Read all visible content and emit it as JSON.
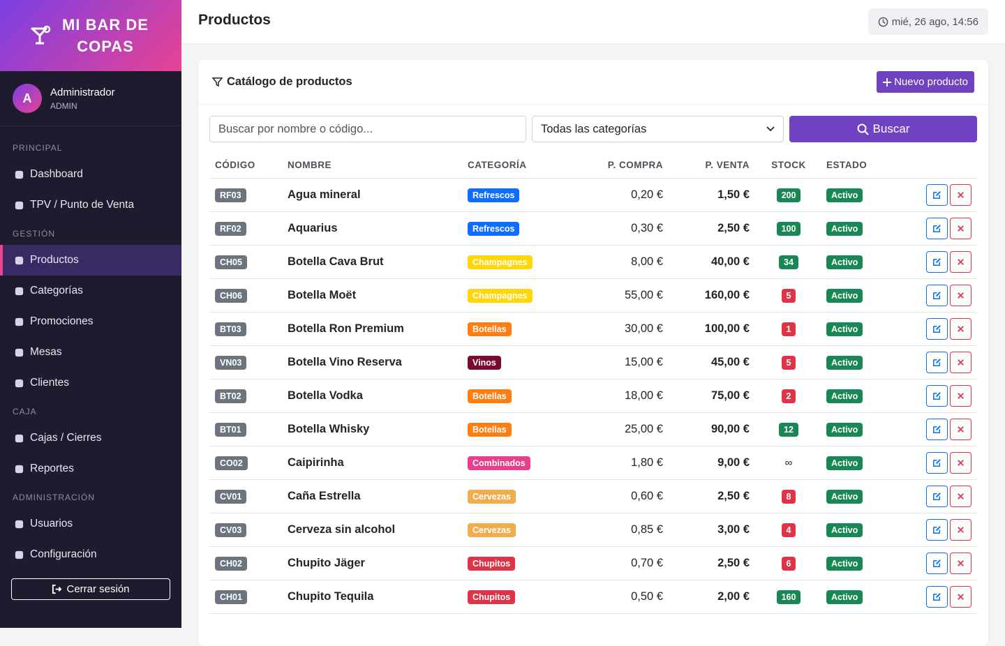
{
  "sidebar": {
    "brand": "MI BAR DE COPAS",
    "avatar": "A",
    "user_name": "Administrador",
    "user_role": "ADMIN",
    "active_item": "Productos",
    "sections": [
      {
        "title": "PRINCIPAL",
        "items": [
          "Dashboard",
          "TPV / Punto de Venta"
        ]
      },
      {
        "title": "GESTIÓN",
        "items": [
          "Productos",
          "Categorías",
          "Promociones",
          "Mesas",
          "Clientes"
        ]
      },
      {
        "title": "CAJA",
        "items": [
          "Cajas / Cierres",
          "Reportes"
        ]
      },
      {
        "title": "ADMINISTRACIÓN",
        "items": [
          "Usuarios",
          "Configuración"
        ]
      }
    ],
    "logout": "Cerrar sesión"
  },
  "header": {
    "title": "Productos",
    "datetime": "mié, 26 ago, 14:56"
  },
  "card": {
    "title": "Catálogo de productos",
    "new_button": "Nuevo producto",
    "search_placeholder": "Buscar por nombre o código...",
    "category_select": "Todas las categorías",
    "search_button": "Buscar"
  },
  "table": {
    "columns": [
      "CÓDIGO",
      "NOMBRE",
      "CATEGORÍA",
      "P. COMPRA",
      "P. VENTA",
      "STOCK",
      "ESTADO"
    ],
    "status_color": "#198754",
    "code_color": "#6c757d",
    "rows": [
      {
        "code": "RF03",
        "name": "Agua mineral",
        "category": "Refrescos",
        "category_color": "#0d6efd",
        "buy": "0,20 €",
        "sell": "1,50 €",
        "stock": "200",
        "stock_color": "#198754",
        "status": "Activo"
      },
      {
        "code": "RF02",
        "name": "Aquarius",
        "category": "Refrescos",
        "category_color": "#0d6efd",
        "buy": "0,30 €",
        "sell": "2,50 €",
        "stock": "100",
        "stock_color": "#198754",
        "status": "Activo"
      },
      {
        "code": "CH05",
        "name": "Botella Cava Brut",
        "category": "Champagnes",
        "category_color": "#ffd60a",
        "buy": "8,00 €",
        "sell": "40,00 €",
        "stock": "34",
        "stock_color": "#198754",
        "status": "Activo"
      },
      {
        "code": "CH06",
        "name": "Botella Moët",
        "category": "Champagnes",
        "category_color": "#ffd60a",
        "buy": "55,00 €",
        "sell": "160,00 €",
        "stock": "5",
        "stock_color": "#dc3545",
        "status": "Activo"
      },
      {
        "code": "BT03",
        "name": "Botella Ron Premium",
        "category": "Botellas",
        "category_color": "#fd7e14",
        "buy": "30,00 €",
        "sell": "100,00 €",
        "stock": "1",
        "stock_color": "#dc3545",
        "status": "Activo"
      },
      {
        "code": "VN03",
        "name": "Botella Vino Reserva",
        "category": "Vinos",
        "category_color": "#7b0a32",
        "buy": "15,00 €",
        "sell": "45,00 €",
        "stock": "5",
        "stock_color": "#dc3545",
        "status": "Activo"
      },
      {
        "code": "BT02",
        "name": "Botella Vodka",
        "category": "Botellas",
        "category_color": "#fd7e14",
        "buy": "18,00 €",
        "sell": "75,00 €",
        "stock": "2",
        "stock_color": "#dc3545",
        "status": "Activo"
      },
      {
        "code": "BT01",
        "name": "Botella Whisky",
        "category": "Botellas",
        "category_color": "#fd7e14",
        "buy": "25,00 €",
        "sell": "90,00 €",
        "stock": "12",
        "stock_color": "#198754",
        "status": "Activo"
      },
      {
        "code": "CO02",
        "name": "Caipirinha",
        "category": "Combinados",
        "category_color": "#e83e8c",
        "buy": "1,80 €",
        "sell": "9,00 €",
        "stock": "∞",
        "status": "Activo"
      },
      {
        "code": "CV01",
        "name": "Caña Estrella",
        "category": "Cervezas",
        "category_color": "#f0ad4e",
        "buy": "0,60 €",
        "sell": "2,50 €",
        "stock": "8",
        "stock_color": "#dc3545",
        "status": "Activo"
      },
      {
        "code": "CV03",
        "name": "Cerveza sin alcohol",
        "category": "Cervezas",
        "category_color": "#f0ad4e",
        "buy": "0,85 €",
        "sell": "3,00 €",
        "stock": "4",
        "stock_color": "#dc3545",
        "status": "Activo"
      },
      {
        "code": "CH02",
        "name": "Chupito Jäger",
        "category": "Chupitos",
        "category_color": "#dc3545",
        "buy": "0,70 €",
        "sell": "2,50 €",
        "stock": "6",
        "stock_color": "#dc3545",
        "status": "Activo"
      },
      {
        "code": "CH01",
        "name": "Chupito Tequila",
        "category": "Chupitos",
        "category_color": "#dc3545",
        "buy": "0,50 €",
        "sell": "2,00 €",
        "stock": "160",
        "stock_color": "#198754",
        "status": "Activo"
      }
    ]
  }
}
